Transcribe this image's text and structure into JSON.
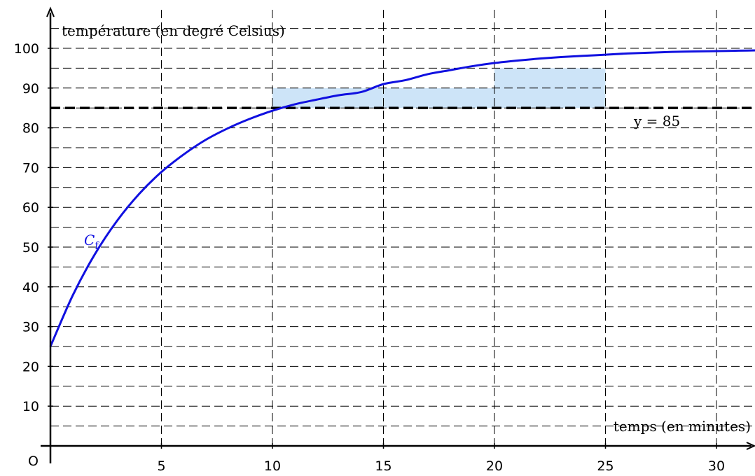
{
  "chart_data": {
    "type": "line",
    "title": "",
    "xlabel": "temps (en minutes)",
    "ylabel": "température (en degré Celsius)",
    "origin_label": "O",
    "xlim": [
      0,
      32
    ],
    "ylim": [
      0,
      105
    ],
    "x_ticks": [
      5,
      10,
      15,
      20,
      25,
      30
    ],
    "y_ticks": [
      10,
      20,
      30,
      40,
      50,
      60,
      70,
      80,
      90,
      100
    ],
    "x_grid_step": 5,
    "y_grid_step": 5,
    "grid": true,
    "series": [
      {
        "name": "C_f",
        "label_main": "C",
        "label_sub": "f",
        "color": "#1010e0",
        "x": [
          0,
          1,
          2,
          3,
          4,
          5,
          6,
          7,
          8,
          9,
          10,
          11,
          12,
          13,
          14,
          15,
          16,
          17,
          18,
          19,
          20,
          21,
          22,
          23,
          24,
          25,
          26,
          27,
          28,
          29,
          30,
          31,
          32
        ],
        "y": [
          25,
          37.8,
          48.2,
          56.6,
          63.4,
          68.9,
          73.3,
          77.0,
          79.9,
          82.3,
          84.3,
          85.9,
          87.1,
          88.2,
          89.0,
          91.0,
          92.0,
          93.5,
          94.5,
          95.5,
          96.3,
          96.9,
          97.4,
          97.8,
          98.1,
          98.4,
          98.7,
          98.9,
          99.1,
          99.2,
          99.3,
          99.4,
          99.5
        ]
      }
    ],
    "reference_line": {
      "y": 85,
      "label": "y = 85",
      "style": "dashed",
      "color": "#000000"
    },
    "shaded_rectangles": [
      {
        "x0": 10,
        "x1": 20,
        "y0": 85,
        "y1": 90,
        "color": "#cde4f8"
      },
      {
        "x0": 20,
        "x1": 25,
        "y0": 85,
        "y1": 95,
        "color": "#cde4f8"
      }
    ]
  }
}
